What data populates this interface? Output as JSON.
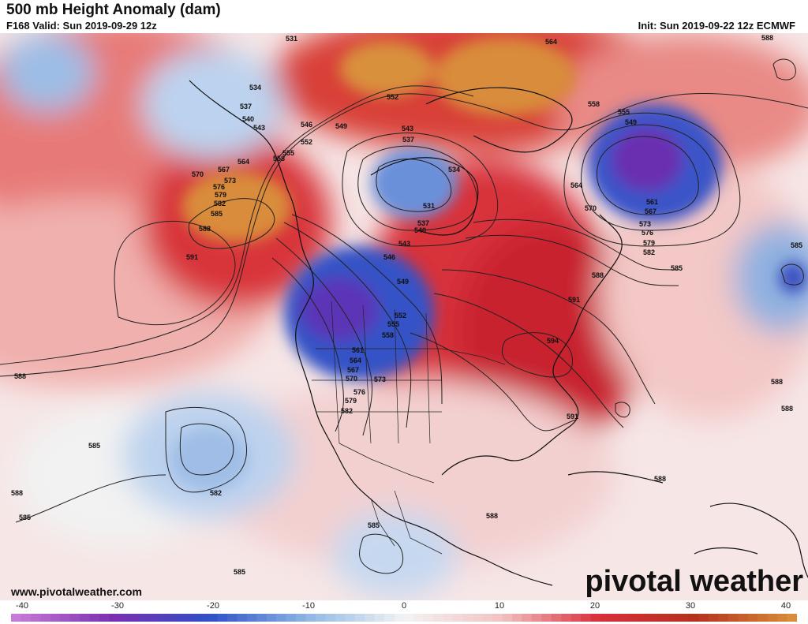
{
  "header": {
    "title": "500 mb Height Anomaly (dam)",
    "valid": "F168 Valid: Sun 2019-09-29 12z",
    "init": "Init: Sun 2019-09-22 12z ECMWF"
  },
  "footer": {
    "website": "www.pivotalweather.com",
    "brand": "pivotal weather"
  },
  "colorbar": {
    "ticks": [
      "-40",
      "-30",
      "-20",
      "-10",
      "0",
      "10",
      "20",
      "30",
      "40"
    ],
    "colors": {
      "neg_extreme": "#c77bd6",
      "neg_strong": "#7a2fb0",
      "neg_mid": "#2f4fc7",
      "neg_weak": "#8fb6e3",
      "neutral": "#f3f3f3",
      "pos_weak": "#f2c3c3",
      "pos_mid": "#d8303b",
      "pos_strong": "#b5311e",
      "pos_extreme": "#d98c3a"
    }
  },
  "contour_labels": [
    "531",
    "534",
    "537",
    "540",
    "543",
    "546",
    "549",
    "552",
    "555",
    "558",
    "561",
    "564",
    "567",
    "570",
    "573",
    "576",
    "579",
    "582",
    "585",
    "588",
    "591",
    "594"
  ],
  "map_labels": {
    "l531a": "531",
    "l534a": "534",
    "l537a": "537",
    "l540a": "540",
    "l543a": "543",
    "l546a": "546",
    "l549a": "549",
    "l552a": "552",
    "l555a": "555",
    "l558a": "558",
    "l564a": "564",
    "l567a": "567",
    "l570a": "570",
    "l573a": "573",
    "l576a": "576",
    "l579a": "579",
    "l582a": "582",
    "l585a": "585",
    "l588a": "588",
    "l591a": "591",
    "l552b": "552",
    "l564b": "564",
    "l543b": "543",
    "l537b": "537",
    "l534b": "534",
    "l531b": "531",
    "l537c": "537",
    "l540b": "540",
    "l543c": "543",
    "l546b": "546",
    "l549b": "549",
    "l552c": "552",
    "l555b": "555",
    "l558b": "558",
    "l561b": "561",
    "l564c": "564",
    "l567b": "567",
    "l570b": "570",
    "l573b": "573",
    "l576b": "576",
    "l579b": "579",
    "l582b": "582",
    "l588b": "588",
    "l591b": "591",
    "l594a": "594",
    "l555c": "555",
    "l549c": "549",
    "l561c": "561",
    "l567c": "567",
    "l573c": "573",
    "l576c": "576",
    "l579c": "579",
    "l582c": "582",
    "l585b": "585",
    "l588c": "588",
    "l558c": "558",
    "l564d": "564",
    "l570c": "570",
    "l585c": "585",
    "l588d": "588",
    "l588e": "588",
    "l588f": "588",
    "l591c": "591",
    "l588g": "588",
    "l588h": "588",
    "l588i": "588",
    "l585d": "585",
    "l585e": "585",
    "l582d": "582",
    "l585f": "585",
    "l585g": "585"
  }
}
